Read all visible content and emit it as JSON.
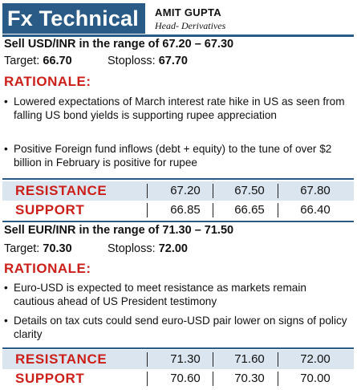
{
  "header": {
    "brand": "Fx Technical",
    "author": "AMIT GUPTA",
    "role": "Head- Derivatives"
  },
  "usd": {
    "title": "Sell USD/INR in the range of 67.20 – 67.30",
    "target_label": "Target:",
    "target_value": "66.70",
    "stoploss_label": "Stoploss:",
    "stoploss_value": "67.70",
    "rationale_label": "RATIONALE:",
    "bullets": [
      "Lowered expectations of March interest rate hike in US as seen from falling US bond yields is supporting rupee appreciation",
      "Positive Foreign fund inflows (debt + equity) to the tune of over $2 billion in February is positive for rupee"
    ],
    "resistance_label": "RESISTANCE",
    "resistance": [
      "67.20",
      "67.50",
      "67.80"
    ],
    "support_label": "SUPPORT",
    "support": [
      "66.85",
      "66.65",
      "66.40"
    ]
  },
  "eur": {
    "title": "Sell EUR/INR in the range of 71.30 – 71.50",
    "target_label": "Target:",
    "target_value": "70.30",
    "stoploss_label": "Stoploss:",
    "stoploss_value": "72.00",
    "rationale_label": "RATIONALE:",
    "bullets": [
      "Euro-USD is expected to meet resistance as markets remain cautious ahead of US President testimony",
      "Details on tax cuts could send euro-USD pair lower on signs of policy clarity"
    ],
    "resistance_label": "RESISTANCE",
    "resistance": [
      "71.30",
      "71.60",
      "72.00"
    ],
    "support_label": "SUPPORT",
    "support": [
      "70.60",
      "70.30",
      "70.00"
    ]
  },
  "colors": {
    "brand_blue": "#2a5b86",
    "accent_red": "#cc1f1a",
    "row_shade": "#dbe5ef"
  }
}
